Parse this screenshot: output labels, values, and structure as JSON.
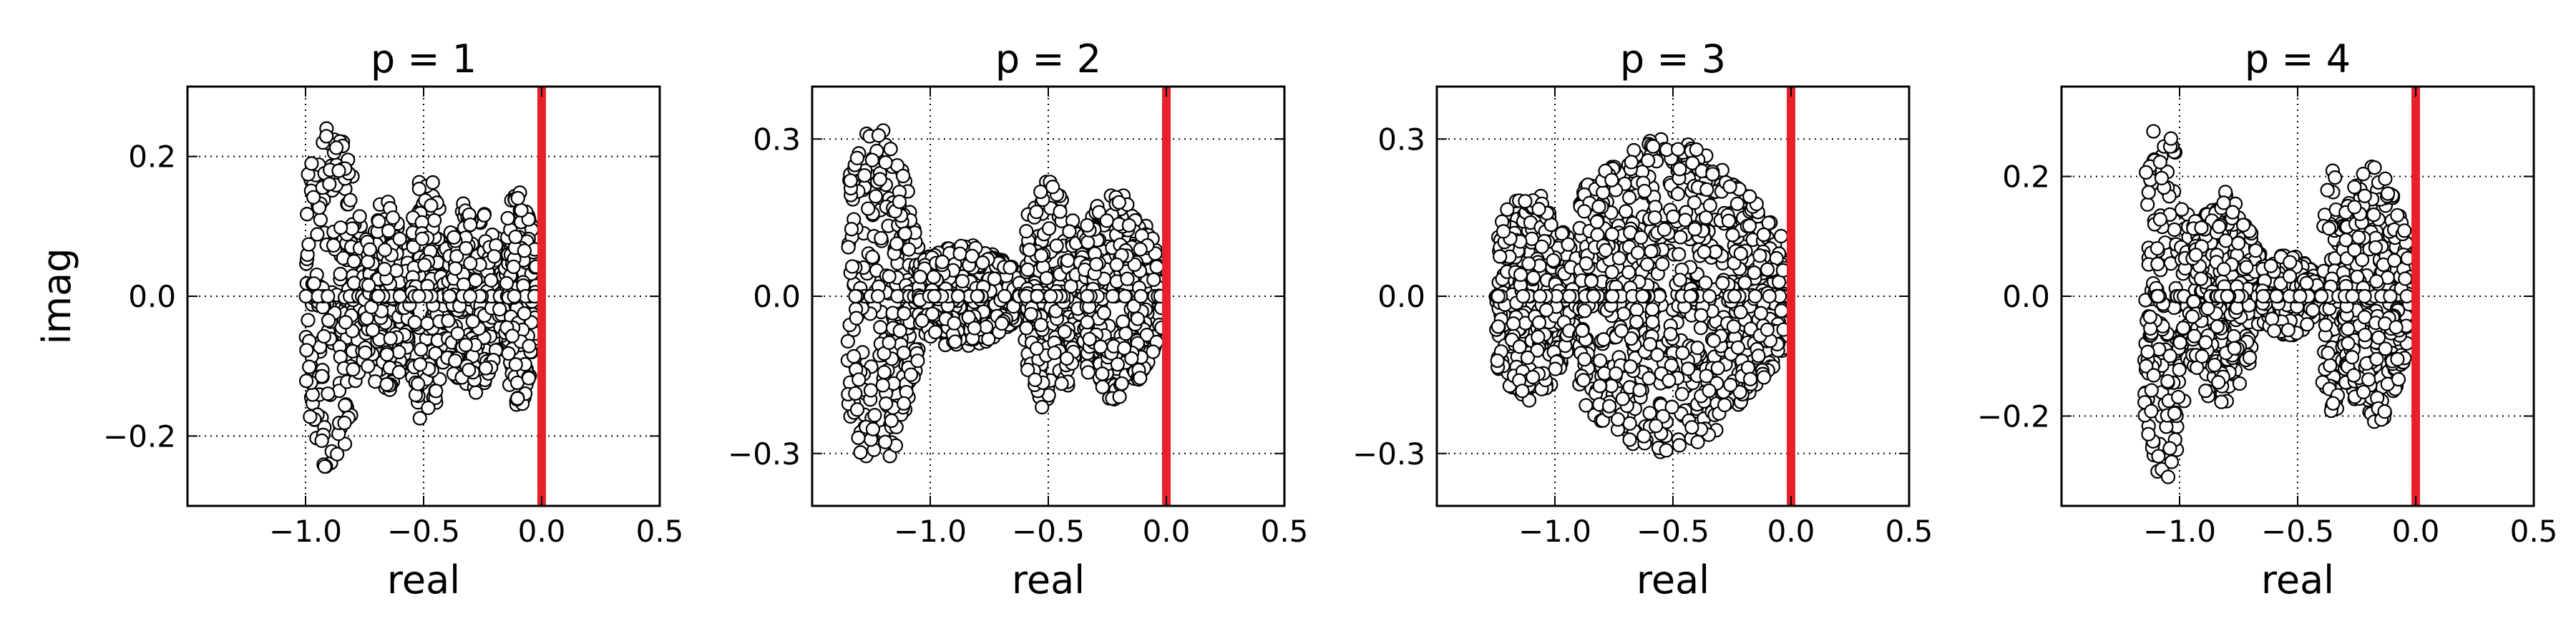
{
  "chart_data": [
    {
      "type": "scatter",
      "title": "p = 1",
      "xlabel": "real",
      "ylabel": "imag",
      "xlim": [
        -1.5,
        0.5
      ],
      "ylim": [
        -0.3,
        0.3
      ],
      "xticks": [
        -1.0,
        -0.5,
        0.0,
        0.5
      ],
      "xtick_labels": [
        "−1.0",
        "−0.5",
        "0.0",
        "0.5"
      ],
      "yticks": [
        -0.2,
        0.0,
        0.2
      ],
      "ytick_labels": [
        "−0.2",
        "0.0",
        "0.2"
      ],
      "grid": true,
      "marker_face": "#ffffff",
      "marker_edge": "#000000",
      "reference_line": {
        "x": 0.0,
        "color": "#e8202a"
      },
      "clusters": [
        {
          "x": [
            -1.0,
            -0.75
          ],
          "imag_max": 0.25
        },
        {
          "x": [
            -0.75,
            -0.55
          ],
          "imag_max": 0.14
        },
        {
          "x": [
            -0.55,
            -0.4
          ],
          "imag_max": 0.19
        },
        {
          "x": [
            -0.4,
            -0.15
          ],
          "imag_max": 0.14
        },
        {
          "x": [
            -0.15,
            -0.02
          ],
          "imag_max": 0.16
        }
      ]
    },
    {
      "type": "scatter",
      "title": "p = 2",
      "xlabel": "real",
      "ylabel": "",
      "xlim": [
        -1.5,
        0.5
      ],
      "ylim": [
        -0.4,
        0.4
      ],
      "xticks": [
        -1.0,
        -0.5,
        0.0,
        0.5
      ],
      "xtick_labels": [
        "−1.0",
        "−0.5",
        "0.0",
        "0.5"
      ],
      "yticks": [
        -0.3,
        0.0,
        0.3
      ],
      "ytick_labels": [
        "−0.3",
        "0.0",
        "0.3"
      ],
      "grid": true,
      "marker_face": "#ffffff",
      "marker_edge": "#000000",
      "reference_line": {
        "x": 0.0,
        "color": "#e8202a"
      },
      "clusters": [
        {
          "x": [
            -1.35,
            -1.05
          ],
          "imag_max": 0.34
        },
        {
          "x": [
            -1.05,
            -0.6
          ],
          "imag_max": 0.1
        },
        {
          "x": [
            -0.6,
            -0.35
          ],
          "imag_max": 0.22
        },
        {
          "x": [
            -0.35,
            -0.02
          ],
          "imag_max": 0.2
        }
      ]
    },
    {
      "type": "scatter",
      "title": "p = 3",
      "xlabel": "real",
      "ylabel": "",
      "xlim": [
        -1.5,
        0.5
      ],
      "ylim": [
        -0.4,
        0.4
      ],
      "xticks": [
        -1.0,
        -0.5,
        0.0,
        0.5
      ],
      "xtick_labels": [
        "−1.0",
        "−0.5",
        "0.0",
        "0.5"
      ],
      "yticks": [
        -0.3,
        0.0,
        0.3
      ],
      "ytick_labels": [
        "−0.3",
        "0.0",
        "0.3"
      ],
      "grid": true,
      "marker_face": "#ffffff",
      "marker_edge": "#000000",
      "reference_line": {
        "x": 0.0,
        "color": "#e8202a"
      },
      "clusters": [
        {
          "x": [
            -1.25,
            -0.9
          ],
          "imag_max": 0.2
        },
        {
          "x": [
            -0.9,
            -0.02
          ],
          "imag_max": 0.3
        }
      ]
    },
    {
      "type": "scatter",
      "title": "p = 4",
      "xlabel": "real",
      "ylabel": "",
      "xlim": [
        -1.5,
        0.5
      ],
      "ylim": [
        -0.35,
        0.35
      ],
      "xticks": [
        -1.0,
        -0.5,
        0.0,
        0.5
      ],
      "xtick_labels": [
        "−1.0",
        "−0.5",
        "0.0",
        "0.5"
      ],
      "yticks": [
        -0.2,
        0.0,
        0.2
      ],
      "ytick_labels": [
        "−0.2",
        "0.0",
        "0.2"
      ],
      "grid": true,
      "marker_face": "#ffffff",
      "marker_edge": "#000000",
      "reference_line": {
        "x": 0.0,
        "color": "#e8202a"
      },
      "clusters": [
        {
          "x": [
            -1.15,
            -0.95
          ],
          "imag_max": 0.31
        },
        {
          "x": [
            -0.95,
            -0.65
          ],
          "imag_max": 0.18
        },
        {
          "x": [
            -0.65,
            -0.4
          ],
          "imag_max": 0.07
        },
        {
          "x": [
            -0.4,
            -0.3
          ],
          "imag_max": 0.22
        },
        {
          "x": [
            -0.3,
            -0.02
          ],
          "imag_max": 0.22
        }
      ]
    }
  ]
}
